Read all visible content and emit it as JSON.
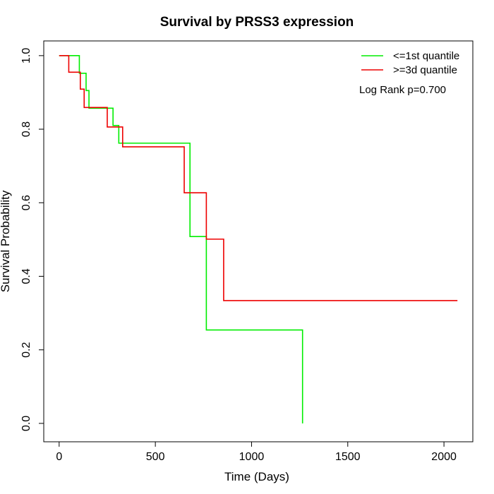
{
  "chart_data": {
    "type": "line",
    "title": "Survival by PRSS3 expression",
    "xlabel": "Time (Days)",
    "ylabel": "Survival Probability",
    "xlim": [
      -80,
      2150
    ],
    "ylim": [
      -0.05,
      1.04
    ],
    "xticks": [
      0,
      500,
      1000,
      1500,
      2000
    ],
    "yticks": [
      0.0,
      0.2,
      0.4,
      0.6,
      0.8,
      1.0
    ],
    "xtick_labels": [
      "0",
      "500",
      "1000",
      "1500",
      "2000"
    ],
    "ytick_labels": [
      "0.0",
      "0.2",
      "0.4",
      "0.6",
      "0.8",
      "1.0"
    ],
    "grid": false,
    "legend_position": "top-right",
    "annotation": "Log Rank p=0.700",
    "series": [
      {
        "name": "<=1st quantile",
        "color": "#00ee00",
        "step": true,
        "x": [
          0,
          105,
          140,
          155,
          280,
          310,
          320,
          680,
          765,
          1265,
          1265
        ],
        "y": [
          1.0,
          0.952,
          0.905,
          0.857,
          0.81,
          0.762,
          0.762,
          0.508,
          0.254,
          0.254,
          0.0
        ]
      },
      {
        "name": ">=3d quantile",
        "color": "#ee0000",
        "step": true,
        "x": [
          0,
          50,
          110,
          130,
          250,
          330,
          650,
          765,
          855,
          2070
        ],
        "y": [
          1.0,
          0.955,
          0.909,
          0.859,
          0.806,
          0.752,
          0.627,
          0.501,
          0.334,
          0.334
        ]
      }
    ]
  }
}
